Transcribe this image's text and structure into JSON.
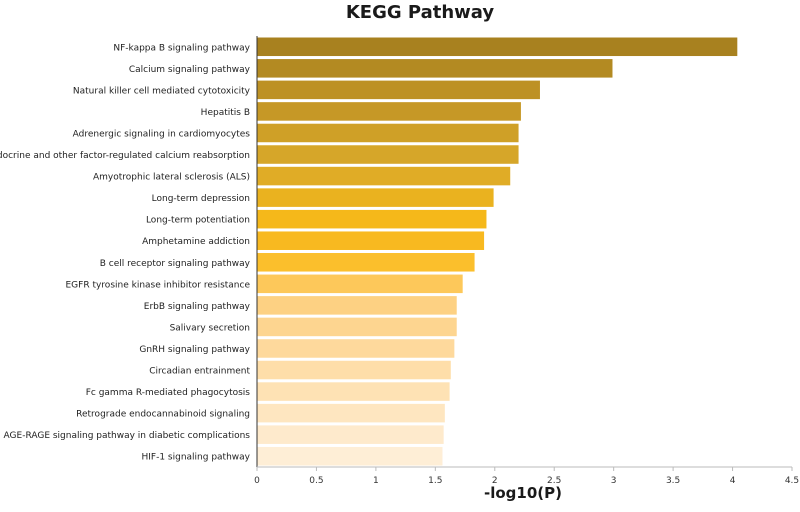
{
  "chart_data": {
    "type": "bar",
    "orientation": "horizontal",
    "title": "KEGG Pathway",
    "xlabel": "-log10(P)",
    "ylabel": "",
    "xlim": [
      0,
      4.5
    ],
    "xticks": [
      "0",
      "0.5",
      "1",
      "1.5",
      "2",
      "2.5",
      "3",
      "3.5",
      "4",
      "4.5"
    ],
    "grid": false,
    "categories": [
      "NF-kappa B signaling pathway",
      "Calcium signaling pathway",
      "Natural killer cell mediated cytotoxicity",
      "Hepatitis B",
      "Adrenergic signaling in cardiomyocytes",
      "Endocrine and other factor-regulated calcium reabsorption",
      "Amyotrophic lateral sclerosis (ALS)",
      "Long-term depression",
      "Long-term potentiation",
      "Amphetamine addiction",
      "B cell receptor signaling pathway",
      "EGFR tyrosine kinase inhibitor resistance",
      "ErbB signaling pathway",
      "Salivary secretion",
      "GnRH signaling pathway",
      "Circadian entrainment",
      "Fc gamma R-mediated phagocytosis",
      "Retrograde endocannabinoid signaling",
      "AGE-RAGE signaling pathway in diabetic complications",
      "HIF-1 signaling pathway"
    ],
    "values": [
      4.04,
      2.99,
      2.38,
      2.22,
      2.2,
      2.2,
      2.13,
      1.99,
      1.93,
      1.91,
      1.83,
      1.73,
      1.68,
      1.68,
      1.66,
      1.63,
      1.62,
      1.58,
      1.57,
      1.56
    ],
    "colors": [
      "#a8811f",
      "#b38a22",
      "#bd9124",
      "#c69826",
      "#cfa027",
      "#d6a629",
      "#e0ac26",
      "#eab21f",
      "#f5b81a",
      "#f8b920",
      "#fbbf2c",
      "#fdc85a",
      "#fdd183",
      "#fdd590",
      "#fed99c",
      "#fedea9",
      "#fee2b4",
      "#fee6c0",
      "#feeacc",
      "#feeed6"
    ]
  }
}
